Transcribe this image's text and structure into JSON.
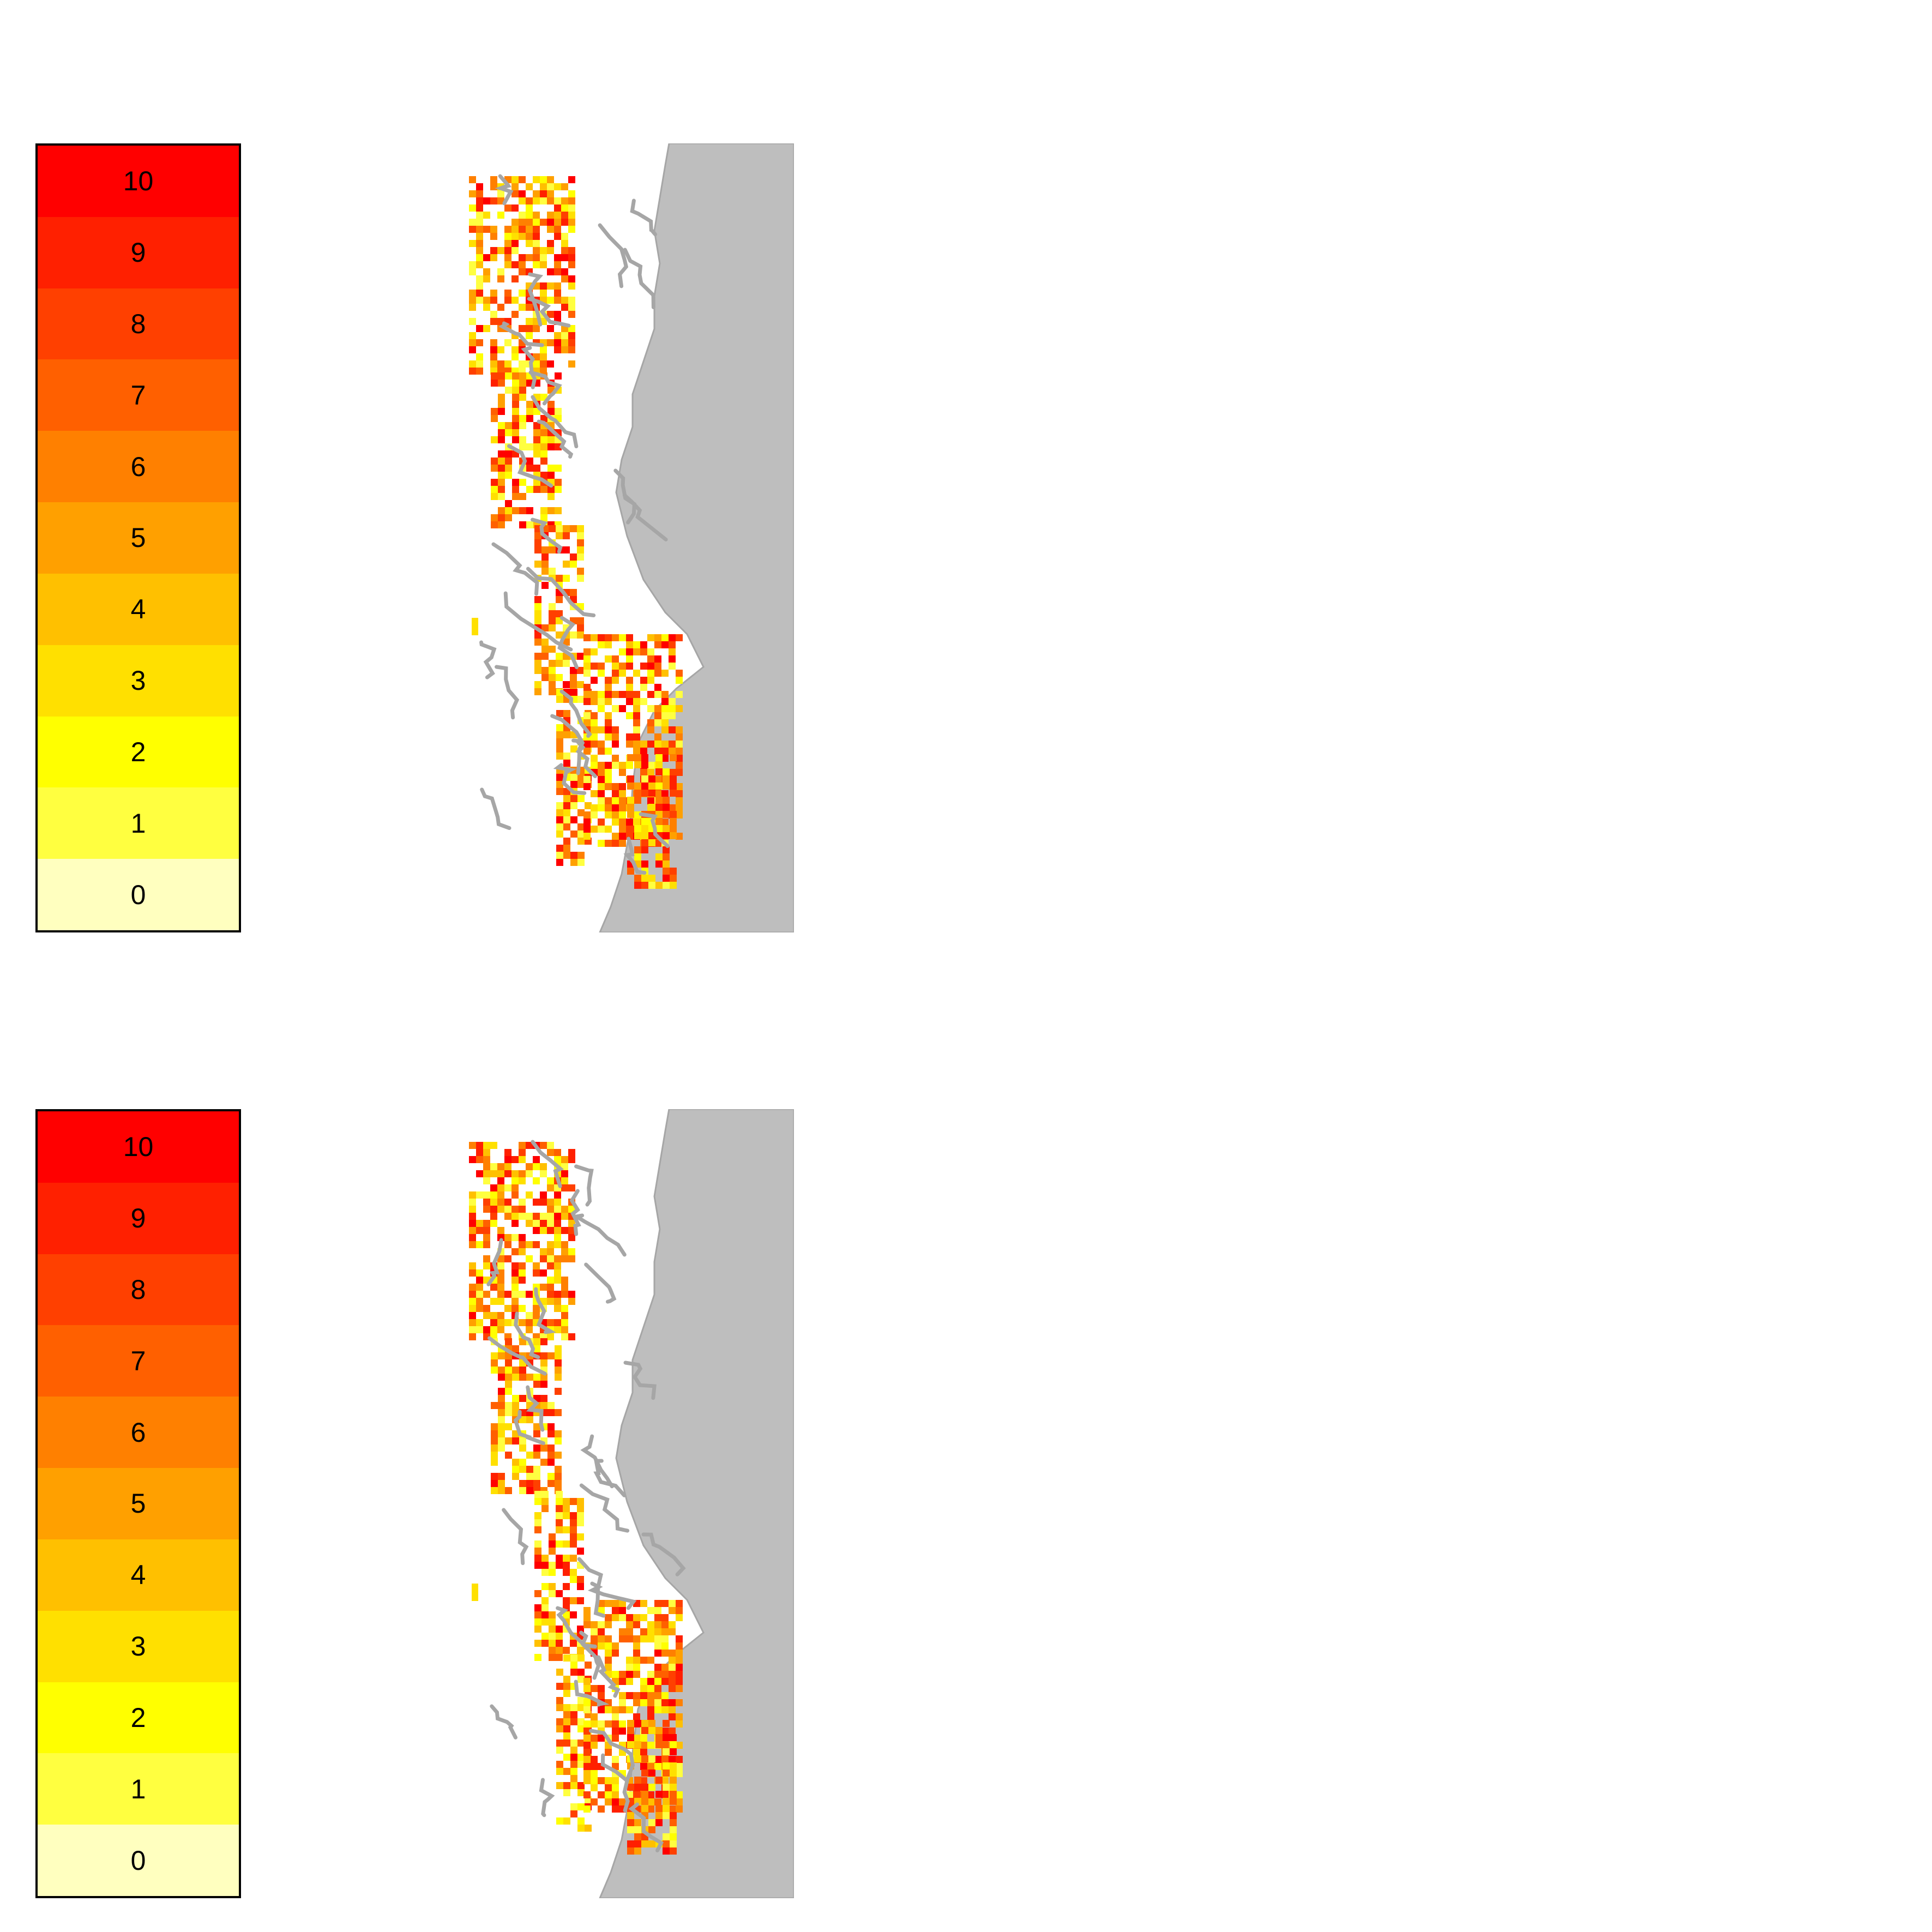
{
  "legend": {
    "labels": [
      "10",
      "9",
      "8",
      "7",
      "6",
      "5",
      "4",
      "3",
      "2",
      "1",
      "0"
    ],
    "colors": [
      "#ff0000",
      "#ff2000",
      "#ff4000",
      "#ff6000",
      "#ff8000",
      "#ffa000",
      "#ffc000",
      "#ffe000",
      "#ffff00",
      "#ffff40",
      "#ffffbf"
    ]
  },
  "land_color": "#bebebe",
  "coast_color": "#a6a6a6",
  "panels": [
    {
      "id": "top",
      "seed": 7
    },
    {
      "id": "bottom",
      "seed": 19
    }
  ]
}
